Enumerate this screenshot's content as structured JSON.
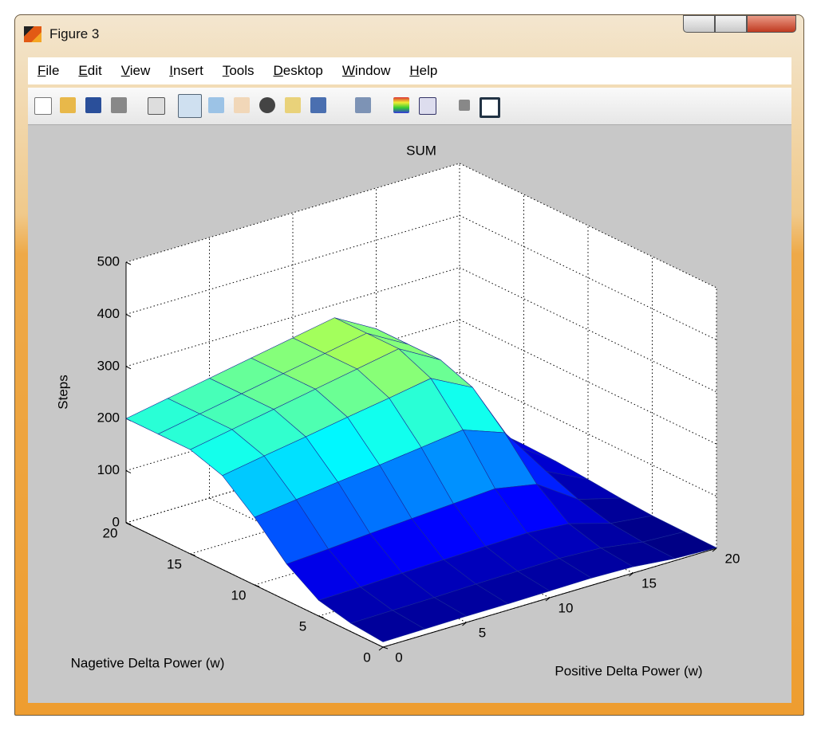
{
  "window": {
    "title": "Figure 3"
  },
  "menu": [
    "File",
    "Edit",
    "View",
    "Insert",
    "Tools",
    "Desktop",
    "Window",
    "Help"
  ],
  "chart_data": {
    "type": "surface",
    "title": "SUM",
    "x_label": "Positive Delta Power (w)",
    "y_label": "Nagetive Delta Power (w)",
    "z_label": "Steps",
    "x": [
      0,
      2.5,
      5,
      7.5,
      10,
      12.5,
      15,
      17.5,
      20
    ],
    "y": [
      0,
      2.5,
      5,
      7.5,
      10,
      12.5,
      15,
      17.5,
      20
    ],
    "z": [
      [
        10,
        11,
        12,
        12,
        13,
        14,
        12,
        4,
        1
      ],
      [
        16,
        17,
        18,
        20,
        21,
        22,
        18,
        6,
        2
      ],
      [
        30,
        32,
        35,
        37,
        39,
        41,
        35,
        12,
        3
      ],
      [
        70,
        75,
        81,
        86,
        91,
        96,
        81,
        28,
        7
      ],
      [
        130,
        140,
        150,
        159,
        169,
        179,
        150,
        52,
        13
      ],
      [
        180,
        194,
        207,
        221,
        234,
        248,
        207,
        72,
        18
      ],
      [
        200,
        215,
        230,
        245,
        260,
        275,
        230,
        80,
        20
      ],
      [
        200,
        215,
        230,
        245,
        260,
        275,
        230,
        80,
        20
      ],
      [
        200,
        215,
        230,
        245,
        260,
        275,
        230,
        80,
        20
      ]
    ],
    "xlim": [
      0,
      20
    ],
    "ylim": [
      0,
      20
    ],
    "zlim": [
      0,
      500
    ],
    "xticks": [
      0,
      5,
      10,
      15,
      20
    ],
    "yticks": [
      0,
      5,
      10,
      15,
      20
    ],
    "zticks": [
      0,
      100,
      200,
      300,
      400,
      500
    ],
    "grid": true,
    "colormap": "jet"
  }
}
